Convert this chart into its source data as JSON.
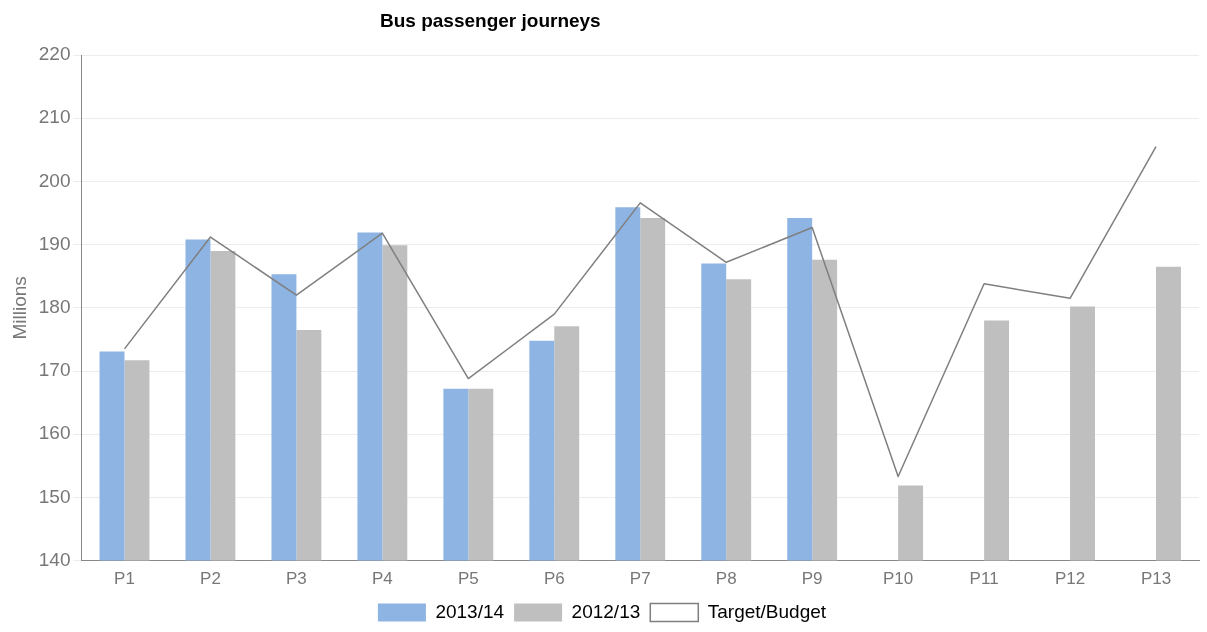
{
  "chart_data": {
    "type": "bar",
    "title": "Bus passenger journeys",
    "ylabel": "Millions",
    "categories": [
      "P1",
      "P2",
      "P3",
      "P4",
      "P5",
      "P6",
      "P7",
      "P8",
      "P9",
      "P10",
      "P11",
      "P12",
      "P13"
    ],
    "series": [
      {
        "name": "2013/14",
        "color": "#8eb4e3",
        "values": [
          173.1,
          190.8,
          185.3,
          191.9,
          167.2,
          174.8,
          195.9,
          187.0,
          194.2,
          null,
          null,
          null,
          null
        ]
      },
      {
        "name": "2012/13",
        "color": "#bfbfbf",
        "values": [
          171.7,
          189.0,
          176.5,
          189.9,
          167.2,
          177.1,
          194.2,
          184.5,
          187.6,
          151.9,
          178.0,
          180.2,
          186.5
        ]
      },
      {
        "name": "Target/Budget",
        "type": "line",
        "color": "#7f7f7f",
        "values": [
          173.5,
          191.2,
          182.0,
          191.8,
          168.8,
          179.0,
          196.6,
          187.2,
          192.7,
          153.3,
          183.8,
          181.5,
          205.5
        ]
      }
    ],
    "ylim": [
      140,
      220
    ],
    "yticks": [
      140,
      150,
      160,
      170,
      180,
      190,
      200,
      210,
      220
    ],
    "grid": "y",
    "legend": "bottom",
    "marker": "none"
  }
}
